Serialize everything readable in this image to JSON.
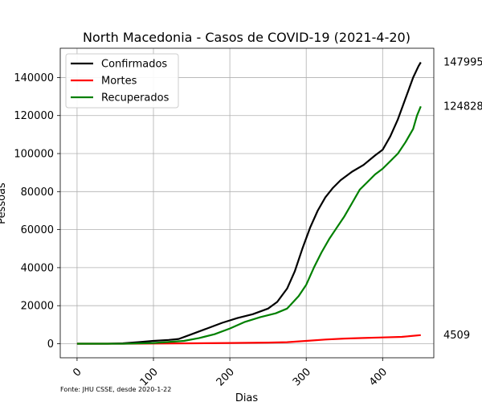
{
  "chart_data": {
    "type": "line",
    "title": "North Macedonia - Casos de COVID-19 (2021-4-20)",
    "xlabel": "Dias",
    "ylabel": "Pessoas",
    "xlim": [
      -22,
      467
    ],
    "ylim": [
      -7400,
      155400
    ],
    "xticks": [
      0,
      100,
      200,
      300,
      400
    ],
    "yticks": [
      0,
      20000,
      40000,
      60000,
      80000,
      100000,
      120000,
      140000
    ],
    "grid": true,
    "legend_position": "top-left",
    "source_note": "Fonte: JHU CSSE, desde 2020-1-22",
    "series": [
      {
        "name": "Confirmados",
        "color": "#000000",
        "end_label": "147995",
        "points": [
          [
            0,
            0
          ],
          [
            40,
            0
          ],
          [
            60,
            200
          ],
          [
            80,
            800
          ],
          [
            100,
            1500
          ],
          [
            120,
            2000
          ],
          [
            133,
            2500
          ],
          [
            150,
            5000
          ],
          [
            170,
            8000
          ],
          [
            190,
            11000
          ],
          [
            210,
            13500
          ],
          [
            230,
            15500
          ],
          [
            250,
            18500
          ],
          [
            262,
            22000
          ],
          [
            275,
            29000
          ],
          [
            285,
            38000
          ],
          [
            295,
            50000
          ],
          [
            305,
            61000
          ],
          [
            315,
            70000
          ],
          [
            325,
            77000
          ],
          [
            335,
            82000
          ],
          [
            345,
            86000
          ],
          [
            360,
            90500
          ],
          [
            375,
            94000
          ],
          [
            390,
            99000
          ],
          [
            400,
            102000
          ],
          [
            410,
            109000
          ],
          [
            420,
            118000
          ],
          [
            430,
            129000
          ],
          [
            440,
            140000
          ],
          [
            447,
            146000
          ],
          [
            450,
            147995
          ]
        ]
      },
      {
        "name": "Mortes",
        "color": "#ff0000",
        "end_label": "4509",
        "points": [
          [
            0,
            0
          ],
          [
            60,
            0
          ],
          [
            100,
            100
          ],
          [
            150,
            200
          ],
          [
            200,
            400
          ],
          [
            250,
            600
          ],
          [
            275,
            800
          ],
          [
            300,
            1500
          ],
          [
            325,
            2200
          ],
          [
            350,
            2700
          ],
          [
            375,
            3000
          ],
          [
            400,
            3300
          ],
          [
            425,
            3600
          ],
          [
            450,
            4509
          ]
        ]
      },
      {
        "name": "Recuperados",
        "color": "#008000",
        "end_label": "124828",
        "points": [
          [
            0,
            0
          ],
          [
            60,
            0
          ],
          [
            100,
            400
          ],
          [
            140,
            1500
          ],
          [
            160,
            3000
          ],
          [
            180,
            5000
          ],
          [
            200,
            8000
          ],
          [
            220,
            11500
          ],
          [
            240,
            14000
          ],
          [
            260,
            16000
          ],
          [
            275,
            18500
          ],
          [
            290,
            25000
          ],
          [
            300,
            31000
          ],
          [
            310,
            40000
          ],
          [
            320,
            48000
          ],
          [
            330,
            55000
          ],
          [
            340,
            61000
          ],
          [
            350,
            67000
          ],
          [
            360,
            74000
          ],
          [
            370,
            81000
          ],
          [
            380,
            85000
          ],
          [
            390,
            89000
          ],
          [
            400,
            92000
          ],
          [
            410,
            96000
          ],
          [
            420,
            100000
          ],
          [
            430,
            106000
          ],
          [
            440,
            113000
          ],
          [
            445,
            120000
          ],
          [
            450,
            124828
          ]
        ]
      }
    ]
  }
}
